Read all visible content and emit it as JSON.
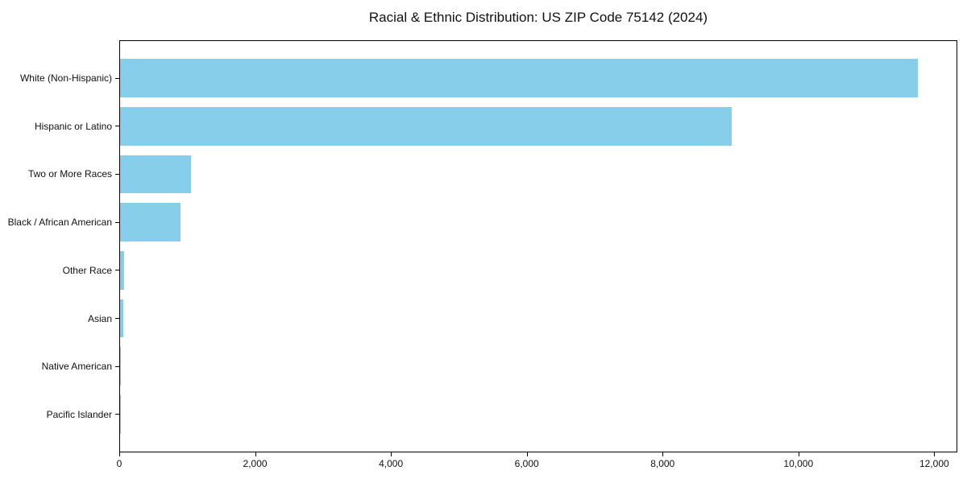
{
  "chart_data": {
    "type": "bar",
    "orientation": "horizontal",
    "title": "Racial & Ethnic Distribution: US ZIP Code 75142 (2024)",
    "categories": [
      "White (Non-Hispanic)",
      "Hispanic or Latino",
      "Two or More Races",
      "Black / African American",
      "Other Race",
      "Asian",
      "Native American",
      "Pacific Islander"
    ],
    "values": [
      11750,
      9000,
      1050,
      885,
      60,
      45,
      10,
      5
    ],
    "xlabel": "",
    "ylabel": "",
    "xlim": [
      0,
      12340
    ],
    "x_ticks": [
      0,
      2000,
      4000,
      6000,
      8000,
      10000,
      12000
    ],
    "x_tick_labels": [
      "0",
      "2,000",
      "4,000",
      "6,000",
      "8,000",
      "10,000",
      "12,000"
    ],
    "bar_color": "#87CEEB",
    "axis_color": "#000000",
    "grid": false,
    "legend": "none"
  }
}
